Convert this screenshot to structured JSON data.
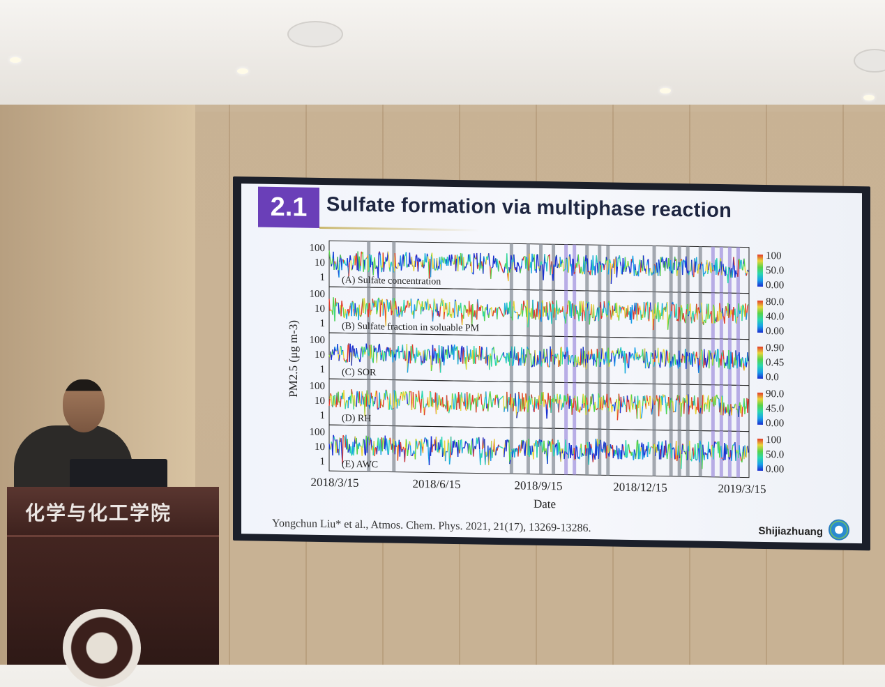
{
  "slide": {
    "section_number": "2.1",
    "title": "Sulfate formation via multiphase reaction",
    "citation": "Yongchun Liu* et al., Atmos. Chem. Phys. 2021, 21(17), 13269-13286.",
    "location": "Shijiazhuang"
  },
  "podium": {
    "label": "化学与化工学院"
  },
  "figure": {
    "ylabel": "PM2.5 (μg m-3)",
    "xlabel": "Date",
    "x_ticks": [
      "2018/3/15",
      "2018/6/15",
      "2018/9/15",
      "2018/12/15",
      "2019/3/15"
    ],
    "y_ticks": [
      "100",
      "10",
      "1"
    ],
    "y_scale": "log",
    "panels": [
      {
        "label": "(A) Sulfate concentration",
        "colorbar": [
          "100",
          "50.0",
          "0.00"
        ]
      },
      {
        "label": "(B) Sulfate fraction in soluable PM",
        "colorbar": [
          "80.0",
          "40.0",
          "0.00"
        ]
      },
      {
        "label": "(C) SOR",
        "colorbar": [
          "0.90",
          "0.45",
          "0.0"
        ]
      },
      {
        "label": "(D) RH",
        "colorbar": [
          "90.0",
          "45.0",
          "0.00"
        ]
      },
      {
        "label": "(E) AWC",
        "colorbar": [
          "100",
          "50.0",
          "0.00"
        ]
      }
    ],
    "colormap": [
      "#1a2fd0",
      "#19a0e8",
      "#2ad6b0",
      "#57d34a",
      "#e8d43a",
      "#e23a2a"
    ],
    "shading_colors": {
      "gray": "#8f959e",
      "purple": "#a89ae0"
    }
  }
}
